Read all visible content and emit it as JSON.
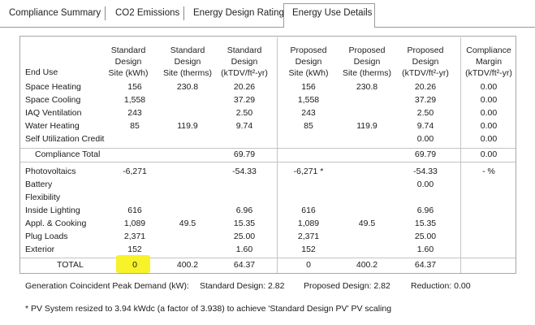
{
  "tabs": [
    {
      "label": "Compliance Summary"
    },
    {
      "label": "CO2 Emissions"
    },
    {
      "label": "Energy Design Rating"
    },
    {
      "label": "Energy Use Details",
      "active": true
    }
  ],
  "columns": {
    "end_use": "End Use",
    "std_site_kwh": [
      "Standard",
      "Design",
      "Site (kWh)"
    ],
    "std_site_therms": [
      "Standard",
      "Design",
      "Site (therms)"
    ],
    "std_tdv": [
      "Standard",
      "Design",
      "(kTDV/ft²-yr)"
    ],
    "prop_site_kwh": [
      "Proposed",
      "Design",
      "Site (kWh)"
    ],
    "prop_site_therms": [
      "Proposed",
      "Design",
      "Site (therms)"
    ],
    "prop_tdv": [
      "Proposed",
      "Design",
      "(kTDV/ft²-yr)"
    ],
    "margin": [
      "Compliance",
      "Margin",
      "(kTDV/ft²-yr)"
    ]
  },
  "rows_top": [
    {
      "label": "Space Heating",
      "v": [
        "156",
        "230.8",
        "20.26",
        "156",
        "230.8",
        "20.26",
        "0.00"
      ]
    },
    {
      "label": "Space Cooling",
      "v": [
        "1,558",
        "",
        "37.29",
        "1,558",
        "",
        "37.29",
        "0.00"
      ]
    },
    {
      "label": "IAQ Ventilation",
      "v": [
        "243",
        "",
        "2.50",
        "243",
        "",
        "2.50",
        "0.00"
      ]
    },
    {
      "label": "Water Heating",
      "v": [
        "85",
        "119.9",
        "9.74",
        "85",
        "119.9",
        "9.74",
        "0.00"
      ]
    },
    {
      "label": "Self Utilization Credit",
      "v": [
        "",
        "",
        "",
        "",
        "",
        "0.00",
        "0.00"
      ]
    }
  ],
  "compliance_total": {
    "label": "Compliance Total",
    "v": [
      "",
      "",
      "69.79",
      "",
      "",
      "69.79",
      "0.00"
    ]
  },
  "rows_bottom": [
    {
      "label": "Photovoltaics",
      "v": [
        "-6,271",
        "",
        "-54.33",
        "-6,271 *",
        "",
        "-54.33",
        "- %"
      ]
    },
    {
      "label": "Battery",
      "v": [
        "",
        "",
        "",
        "",
        "",
        "0.00",
        ""
      ]
    },
    {
      "label": "Flexibility",
      "v": [
        "",
        "",
        "",
        "",
        "",
        "",
        ""
      ]
    },
    {
      "label": "Inside Lighting",
      "v": [
        "616",
        "",
        "6.96",
        "616",
        "",
        "6.96",
        ""
      ]
    },
    {
      "label": "Appl. & Cooking",
      "v": [
        "1,089",
        "49.5",
        "15.35",
        "1,089",
        "49.5",
        "15.35",
        ""
      ]
    },
    {
      "label": "Plug Loads",
      "v": [
        "2,371",
        "",
        "25.00",
        "2,371",
        "",
        "25.00",
        ""
      ]
    },
    {
      "label": "Exterior",
      "v": [
        "152",
        "",
        "1.60",
        "152",
        "",
        "1.60",
        ""
      ]
    }
  ],
  "total": {
    "label": "TOTAL",
    "v": [
      "0",
      "400.2",
      "64.37",
      "0",
      "400.2",
      "64.37",
      ""
    ]
  },
  "peak_demand": {
    "label": "Generation Coincident Peak Demand (kW):",
    "standard": "Standard Design:  2.82",
    "proposed": "Proposed Design:  2.82",
    "reduction": "Reduction:  0.00"
  },
  "footnote": "* PV System resized to 3.94 kWdc (a factor of 3.938) to achieve 'Standard Design PV' PV scaling",
  "colors": {
    "highlight": "#f7f229",
    "border": "#a8a8a8",
    "grid": "#c4c4c4"
  }
}
